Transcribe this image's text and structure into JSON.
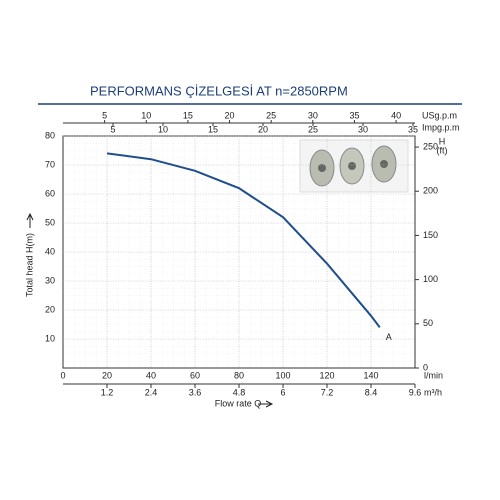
{
  "chart_data": {
    "type": "line",
    "title": "PERFORMANS ÇİZELGESİ  AT n=2850RPM",
    "xlabel": "Flow rate Q",
    "ylabel": "Total head H(m)",
    "y2label": [
      "H",
      "(ft)"
    ],
    "x_unit": "l/min",
    "x2_unit": "m³/h",
    "x3_unit": "USg.p.m",
    "x4_unit": "Impg.p.m",
    "xlim": [
      0,
      160
    ],
    "xticks": [
      0,
      20,
      40,
      60,
      80,
      100,
      120,
      140
    ],
    "x2lim": [
      0,
      9.6
    ],
    "x2ticks": [
      1.2,
      2.4,
      3.6,
      4.8,
      6.0,
      7.2,
      8.4,
      9.6
    ],
    "x3lim": [
      0,
      42.27
    ],
    "x3ticks": [
      5,
      10,
      15,
      20,
      25,
      30,
      35,
      40
    ],
    "x4lim": [
      0,
      35.2
    ],
    "x4ticks": [
      5,
      10,
      15,
      20,
      25,
      30,
      35
    ],
    "ylim": [
      0,
      80
    ],
    "yticks": [
      10,
      20,
      30,
      40,
      50,
      60,
      70,
      80
    ],
    "y2lim": [
      0,
      262.5
    ],
    "y2ticks": [
      0,
      50,
      100,
      150,
      200,
      250
    ],
    "grid": true,
    "series": [
      {
        "name": "A",
        "color": "#1f4e8c",
        "x": [
          20,
          40,
          60,
          80,
          100,
          120,
          140,
          144
        ],
        "values": [
          74,
          72,
          68,
          62,
          52,
          36,
          18,
          14
        ]
      }
    ]
  }
}
